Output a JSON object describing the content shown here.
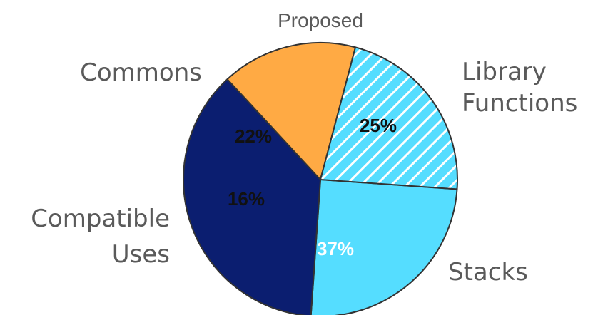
{
  "chart_data": {
    "type": "pie",
    "slices": [
      {
        "pct_label": "25%",
        "value": 25,
        "label_lines": [
          "Library",
          "Functions"
        ],
        "color": "#55DDFF",
        "pattern": "solid",
        "text_color": "#111111"
      },
      {
        "pct_label": "37%",
        "value": 37,
        "label_lines": [
          "Stacks"
        ],
        "color": "#0B1E70",
        "pattern": "solid",
        "text_color": "#ffffff"
      },
      {
        "pct_label": "16%",
        "value": 16,
        "label_lines": [
          "Compatible",
          "Uses"
        ],
        "color": "#FFAA44",
        "pattern": "solid",
        "text_color": "#111111"
      },
      {
        "pct_label": "22%",
        "value": 22,
        "label_lines": [
          "Commons"
        ],
        "color": "#55DDFF",
        "pattern": "hatched",
        "text_color": "#111111"
      }
    ],
    "annotations": [
      {
        "text": "Proposed",
        "refers_to": "Commons"
      }
    ],
    "legend": "none",
    "grid": false
  }
}
